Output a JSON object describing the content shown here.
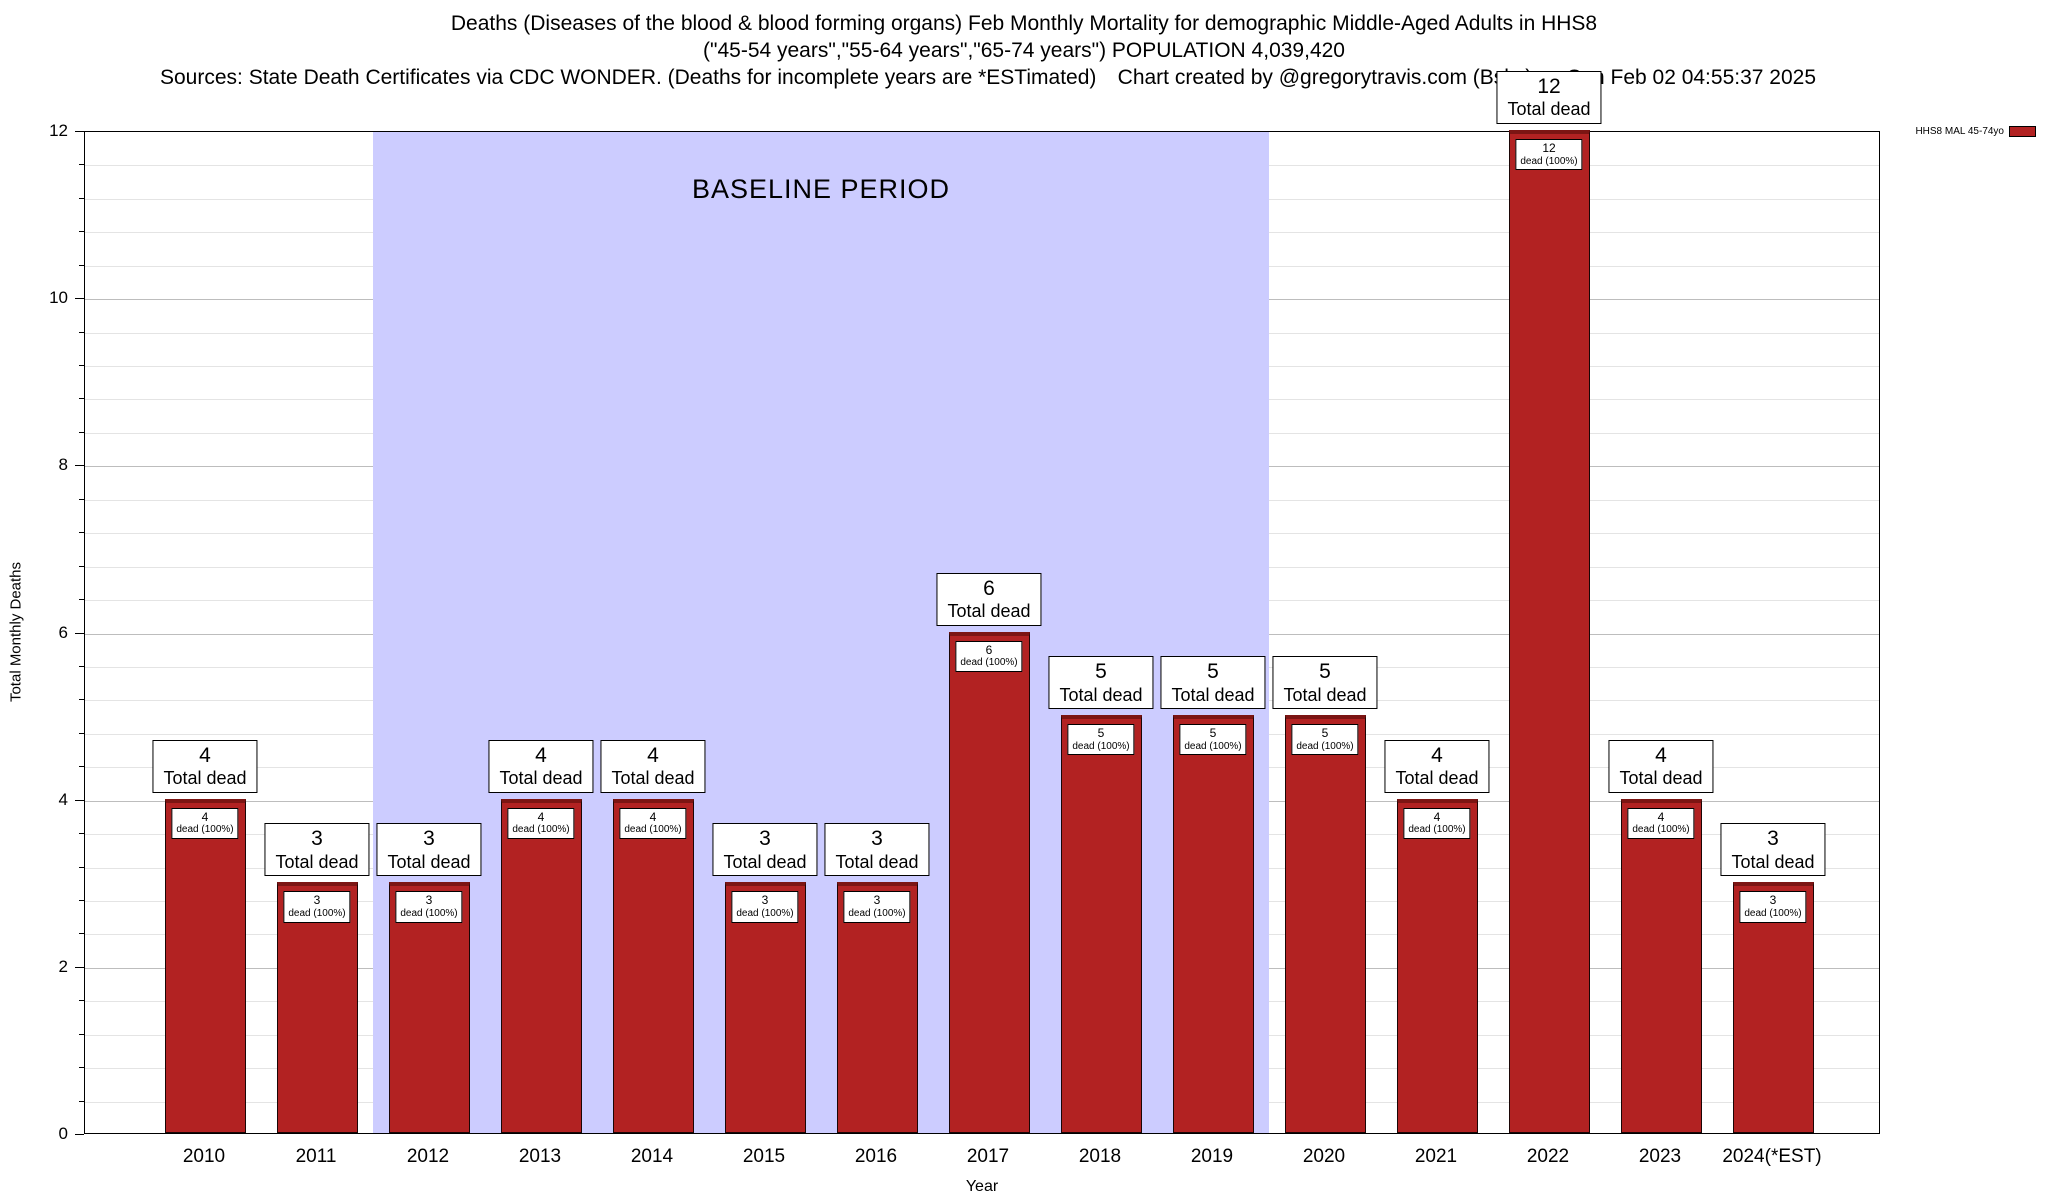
{
  "header": {
    "title_line1": "Deaths (Diseases of the blood & blood forming organs) Feb Monthly Mortality for demographic Middle-Aged Adults in HHS8",
    "title_line2": "(\"45-54 years\",\"55-64 years\",\"65-74 years\") POPULATION 4,039,420",
    "sources": "Sources: State Death Certificates via CDC WONDER. (Deaths for incomplete years are *ESTimated)",
    "credit": "Chart created by @gregorytravis.com (Bsky) on Sun Feb 02 04:55:37 2025"
  },
  "legend": {
    "label": "HHS8 MAL 45-74yo",
    "swatch_color": "#b22222"
  },
  "chart_data": {
    "type": "bar",
    "title": "Deaths (Diseases of the blood & blood forming organs) Feb Monthly Mortality for demographic Middle-Aged Adults in HHS8",
    "subtitle": "(\"45-54 years\",\"55-64 years\",\"65-74 years\") POPULATION 4,039,420",
    "categories": [
      "2010",
      "2011",
      "2012",
      "2013",
      "2014",
      "2015",
      "2016",
      "2017",
      "2018",
      "2019",
      "2020",
      "2021",
      "2022",
      "2023",
      "2024(*EST)"
    ],
    "values": [
      4,
      3,
      3,
      4,
      4,
      3,
      3,
      6,
      5,
      5,
      5,
      4,
      12,
      4,
      3
    ],
    "bar_total_label": "Total dead",
    "bar_inner_label": "dead (100%)",
    "xlabel": "Year",
    "ylabel": "Total Monthly Deaths",
    "ylim": [
      0,
      12
    ],
    "ytick_step": 2,
    "minor_grid_step": 0.4,
    "yticks": [
      "0",
      "2",
      "4",
      "6",
      "8",
      "10",
      "12"
    ],
    "grid": true,
    "bar_color": "#b22222",
    "legend_position": "top-right",
    "baseline_band": {
      "label": "BASELINE PERIOD",
      "start_category": "2012",
      "end_category": "2019",
      "color": "#ccccff"
    }
  }
}
